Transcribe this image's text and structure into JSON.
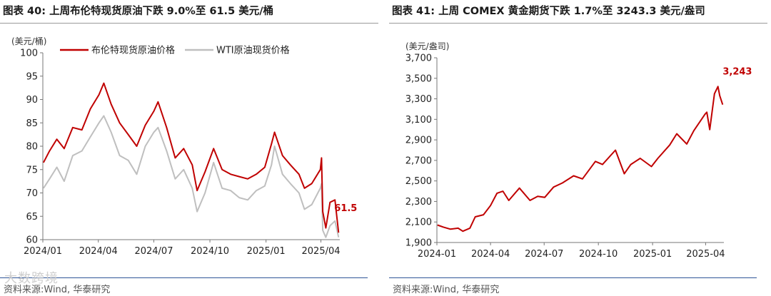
{
  "left": {
    "title": "图表 40:   上周布伦特现货原油下跌 9.0%至 61.5 美元/桶",
    "source": "资料来源:Wind, 华泰研究",
    "watermark": "大数跨境"
  },
  "right": {
    "title": "图表 41:   上周 COMEX 黄金期货下跌 1.7%至 3243.3 美元/盎司",
    "source": "资料来源:Wind, 华泰研究"
  },
  "chart_data": [
    {
      "type": "line",
      "unit_label": "(美元/桶)",
      "ylim": [
        60,
        100
      ],
      "yticks": [
        60,
        65,
        70,
        75,
        80,
        85,
        90,
        95,
        100
      ],
      "xlim": [
        "2024-01-01",
        "2025-05-02"
      ],
      "xticks": [
        {
          "x": "2024-01-01",
          "label": "2024/01"
        },
        {
          "x": "2024-04-01",
          "label": "2024/04"
        },
        {
          "x": "2024-07-01",
          "label": "2024/07"
        },
        {
          "x": "2024-10-01",
          "label": "2024/10"
        },
        {
          "x": "2025-01-01",
          "label": "2025/01"
        },
        {
          "x": "2025-04-01",
          "label": "2025/04"
        }
      ],
      "legend_position": "top-left",
      "grid": false,
      "series": [
        {
          "name": "布伦特现货原油价格",
          "color": "#c00000",
          "points": [
            [
              "2024-01-02",
              76.5
            ],
            [
              "2024-01-12",
              79
            ],
            [
              "2024-01-24",
              81.5
            ],
            [
              "2024-02-05",
              79.5
            ],
            [
              "2024-02-19",
              84
            ],
            [
              "2024-03-05",
              83.5
            ],
            [
              "2024-03-19",
              88
            ],
            [
              "2024-04-02",
              91
            ],
            [
              "2024-04-10",
              93.5
            ],
            [
              "2024-04-22",
              89
            ],
            [
              "2024-05-06",
              85
            ],
            [
              "2024-05-20",
              82.5
            ],
            [
              "2024-06-03",
              80
            ],
            [
              "2024-06-17",
              84.5
            ],
            [
              "2024-07-01",
              87.5
            ],
            [
              "2024-07-08",
              89.5
            ],
            [
              "2024-07-22",
              84
            ],
            [
              "2024-08-05",
              77.5
            ],
            [
              "2024-08-19",
              79.5
            ],
            [
              "2024-09-02",
              76
            ],
            [
              "2024-09-10",
              70.5
            ],
            [
              "2024-09-23",
              74.5
            ],
            [
              "2024-10-07",
              79.5
            ],
            [
              "2024-10-21",
              75
            ],
            [
              "2024-11-04",
              74
            ],
            [
              "2024-11-18",
              73.5
            ],
            [
              "2024-12-02",
              73
            ],
            [
              "2024-12-16",
              74
            ],
            [
              "2024-12-30",
              75.5
            ],
            [
              "2025-01-10",
              80.5
            ],
            [
              "2025-01-15",
              83
            ],
            [
              "2025-01-28",
              78
            ],
            [
              "2025-02-10",
              76
            ],
            [
              "2025-02-24",
              74
            ],
            [
              "2025-03-05",
              71
            ],
            [
              "2025-03-17",
              72
            ],
            [
              "2025-03-31",
              75
            ],
            [
              "2025-04-02",
              77.5
            ],
            [
              "2025-04-04",
              66
            ],
            [
              "2025-04-09",
              62.5
            ],
            [
              "2025-04-16",
              68
            ],
            [
              "2025-04-24",
              68.5
            ],
            [
              "2025-04-30",
              61.5
            ]
          ],
          "end_label": "61.5"
        },
        {
          "name": "WTI原油现货价格",
          "color": "#bfbfbf",
          "points": [
            [
              "2024-01-02",
              71
            ],
            [
              "2024-01-12",
              73
            ],
            [
              "2024-01-24",
              75.5
            ],
            [
              "2024-02-05",
              72.5
            ],
            [
              "2024-02-19",
              78
            ],
            [
              "2024-03-05",
              79
            ],
            [
              "2024-03-19",
              82
            ],
            [
              "2024-04-02",
              85
            ],
            [
              "2024-04-10",
              86.5
            ],
            [
              "2024-04-22",
              83
            ],
            [
              "2024-05-06",
              78
            ],
            [
              "2024-05-20",
              77
            ],
            [
              "2024-06-03",
              74
            ],
            [
              "2024-06-17",
              80
            ],
            [
              "2024-07-01",
              83
            ],
            [
              "2024-07-08",
              84
            ],
            [
              "2024-07-22",
              79
            ],
            [
              "2024-08-05",
              73
            ],
            [
              "2024-08-19",
              75
            ],
            [
              "2024-09-02",
              71
            ],
            [
              "2024-09-10",
              66
            ],
            [
              "2024-09-23",
              70
            ],
            [
              "2024-10-07",
              76.5
            ],
            [
              "2024-10-21",
              71
            ],
            [
              "2024-11-04",
              70.5
            ],
            [
              "2024-11-18",
              69
            ],
            [
              "2024-12-02",
              68.5
            ],
            [
              "2024-12-16",
              70.5
            ],
            [
              "2024-12-30",
              71.5
            ],
            [
              "2025-01-10",
              76
            ],
            [
              "2025-01-15",
              80
            ],
            [
              "2025-01-28",
              74
            ],
            [
              "2025-02-10",
              72
            ],
            [
              "2025-02-24",
              70
            ],
            [
              "2025-03-05",
              66.5
            ],
            [
              "2025-03-17",
              67.5
            ],
            [
              "2025-03-31",
              71
            ],
            [
              "2025-04-02",
              72
            ],
            [
              "2025-04-04",
              62
            ],
            [
              "2025-04-09",
              60.5
            ],
            [
              "2025-04-16",
              63
            ],
            [
              "2025-04-24",
              64
            ],
            [
              "2025-04-30",
              60.5
            ]
          ]
        }
      ]
    },
    {
      "type": "line",
      "unit_label": "(美元/盎司)",
      "ylim": [
        1900,
        3700
      ],
      "yticks": [
        1900,
        2100,
        2300,
        2500,
        2700,
        2900,
        3100,
        3300,
        3500,
        3700
      ],
      "xlim": [
        "2024-01-01",
        "2025-05-02"
      ],
      "xticks": [
        {
          "x": "2024-01-01",
          "label": "2024-01"
        },
        {
          "x": "2024-04-01",
          "label": "2024-04"
        },
        {
          "x": "2024-07-01",
          "label": "2024-07"
        },
        {
          "x": "2024-10-01",
          "label": "2024-10"
        },
        {
          "x": "2025-01-01",
          "label": "2025-01"
        },
        {
          "x": "2025-04-01",
          "label": "2025-04"
        }
      ],
      "grid": false,
      "series": [
        {
          "color": "#c00000",
          "points": [
            [
              "2024-01-02",
              2070
            ],
            [
              "2024-01-12",
              2050
            ],
            [
              "2024-01-24",
              2030
            ],
            [
              "2024-02-06",
              2040
            ],
            [
              "2024-02-14",
              2010
            ],
            [
              "2024-02-26",
              2040
            ],
            [
              "2024-03-06",
              2150
            ],
            [
              "2024-03-20",
              2170
            ],
            [
              "2024-04-01",
              2260
            ],
            [
              "2024-04-12",
              2380
            ],
            [
              "2024-04-22",
              2400
            ],
            [
              "2024-05-02",
              2310
            ],
            [
              "2024-05-20",
              2430
            ],
            [
              "2024-06-07",
              2310
            ],
            [
              "2024-06-20",
              2350
            ],
            [
              "2024-07-02",
              2340
            ],
            [
              "2024-07-17",
              2440
            ],
            [
              "2024-08-01",
              2480
            ],
            [
              "2024-08-20",
              2550
            ],
            [
              "2024-09-04",
              2520
            ],
            [
              "2024-09-26",
              2690
            ],
            [
              "2024-10-08",
              2660
            ],
            [
              "2024-10-30",
              2800
            ],
            [
              "2024-11-14",
              2570
            ],
            [
              "2024-11-25",
              2660
            ],
            [
              "2024-12-11",
              2720
            ],
            [
              "2024-12-30",
              2640
            ],
            [
              "2025-01-10",
              2720
            ],
            [
              "2025-01-30",
              2850
            ],
            [
              "2025-02-11",
              2960
            ],
            [
              "2025-02-28",
              2860
            ],
            [
              "2025-03-12",
              2990
            ],
            [
              "2025-03-31",
              3150
            ],
            [
              "2025-04-03",
              3170
            ],
            [
              "2025-04-08",
              3000
            ],
            [
              "2025-04-16",
              3350
            ],
            [
              "2025-04-22",
              3420
            ],
            [
              "2025-04-25",
              3330
            ],
            [
              "2025-04-30",
              3243.3
            ]
          ],
          "end_label": "3,243"
        }
      ]
    }
  ]
}
